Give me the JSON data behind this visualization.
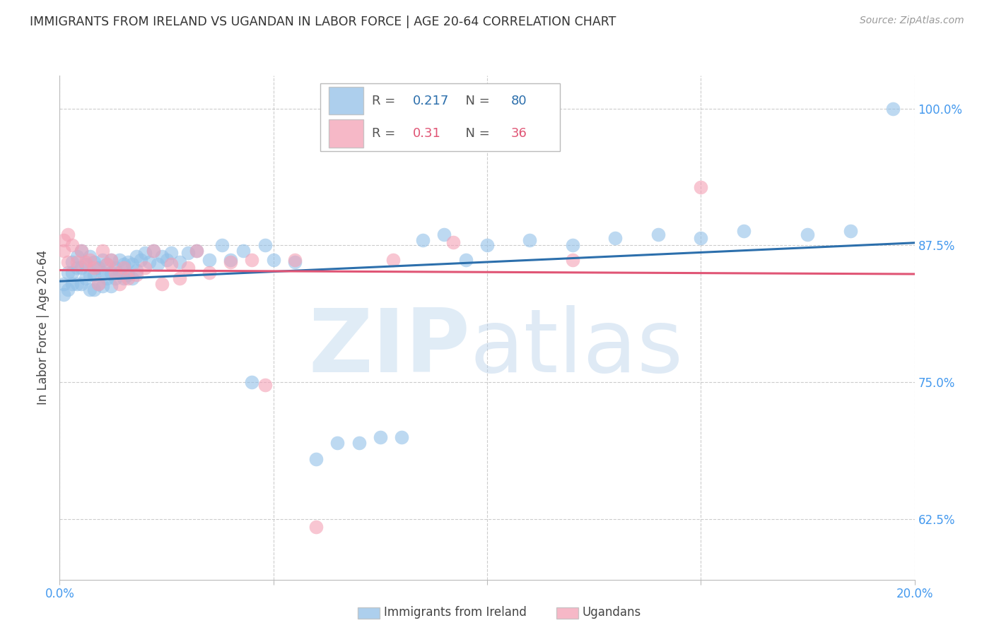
{
  "title": "IMMIGRANTS FROM IRELAND VS UGANDAN IN LABOR FORCE | AGE 20-64 CORRELATION CHART",
  "source": "Source: ZipAtlas.com",
  "ylabel": "In Labor Force | Age 20-64",
  "xlim": [
    0.0,
    0.2
  ],
  "ylim": [
    0.57,
    1.03
  ],
  "yticks": [
    0.625,
    0.75,
    0.875,
    1.0
  ],
  "yticklabels": [
    "62.5%",
    "75.0%",
    "87.5%",
    "100.0%"
  ],
  "ireland_R": 0.217,
  "ireland_N": 80,
  "uganda_R": 0.31,
  "uganda_N": 36,
  "ireland_color": "#92C0E8",
  "uganda_color": "#F4A0B5",
  "ireland_line_color": "#2C6FAC",
  "uganda_line_color": "#E05575",
  "ireland_x": [
    0.001,
    0.001,
    0.002,
    0.002,
    0.003,
    0.003,
    0.003,
    0.004,
    0.004,
    0.004,
    0.005,
    0.005,
    0.005,
    0.006,
    0.006,
    0.007,
    0.007,
    0.007,
    0.008,
    0.008,
    0.008,
    0.009,
    0.009,
    0.01,
    0.01,
    0.01,
    0.011,
    0.011,
    0.012,
    0.012,
    0.012,
    0.013,
    0.013,
    0.014,
    0.014,
    0.015,
    0.015,
    0.016,
    0.016,
    0.017,
    0.017,
    0.018,
    0.018,
    0.019,
    0.02,
    0.021,
    0.022,
    0.023,
    0.024,
    0.025,
    0.026,
    0.028,
    0.03,
    0.032,
    0.035,
    0.038,
    0.04,
    0.043,
    0.045,
    0.048,
    0.05,
    0.055,
    0.06,
    0.065,
    0.07,
    0.075,
    0.08,
    0.085,
    0.09,
    0.095,
    0.1,
    0.11,
    0.12,
    0.13,
    0.14,
    0.15,
    0.16,
    0.175,
    0.185,
    0.195
  ],
  "ireland_y": [
    0.84,
    0.83,
    0.85,
    0.835,
    0.86,
    0.85,
    0.84,
    0.865,
    0.855,
    0.84,
    0.87,
    0.855,
    0.84,
    0.858,
    0.845,
    0.865,
    0.848,
    0.835,
    0.86,
    0.848,
    0.835,
    0.855,
    0.84,
    0.862,
    0.85,
    0.838,
    0.858,
    0.845,
    0.862,
    0.85,
    0.838,
    0.855,
    0.845,
    0.862,
    0.85,
    0.858,
    0.845,
    0.86,
    0.848,
    0.858,
    0.845,
    0.865,
    0.852,
    0.862,
    0.868,
    0.86,
    0.87,
    0.858,
    0.865,
    0.862,
    0.868,
    0.86,
    0.868,
    0.87,
    0.862,
    0.875,
    0.862,
    0.87,
    0.75,
    0.875,
    0.862,
    0.86,
    0.68,
    0.695,
    0.695,
    0.7,
    0.7,
    0.88,
    0.885,
    0.862,
    0.875,
    0.88,
    0.875,
    0.882,
    0.885,
    0.882,
    0.888,
    0.885,
    0.888,
    1.0
  ],
  "uganda_x": [
    0.001,
    0.001,
    0.002,
    0.002,
    0.003,
    0.004,
    0.005,
    0.006,
    0.007,
    0.008,
    0.009,
    0.01,
    0.011,
    0.012,
    0.013,
    0.014,
    0.015,
    0.016,
    0.018,
    0.02,
    0.022,
    0.024,
    0.026,
    0.028,
    0.03,
    0.032,
    0.035,
    0.04,
    0.045,
    0.048,
    0.055,
    0.06,
    0.078,
    0.092,
    0.12,
    0.15
  ],
  "uganda_y": [
    0.88,
    0.87,
    0.885,
    0.86,
    0.875,
    0.86,
    0.87,
    0.86,
    0.862,
    0.855,
    0.84,
    0.87,
    0.858,
    0.862,
    0.85,
    0.84,
    0.855,
    0.845,
    0.848,
    0.855,
    0.87,
    0.84,
    0.858,
    0.845,
    0.855,
    0.87,
    0.85,
    0.86,
    0.862,
    0.748,
    0.862,
    0.618,
    0.862,
    0.878,
    0.862,
    0.928
  ],
  "grid_color": "#cccccc",
  "axis_color": "#bbbbbb",
  "tick_color": "#4499ee",
  "title_color": "#333333"
}
